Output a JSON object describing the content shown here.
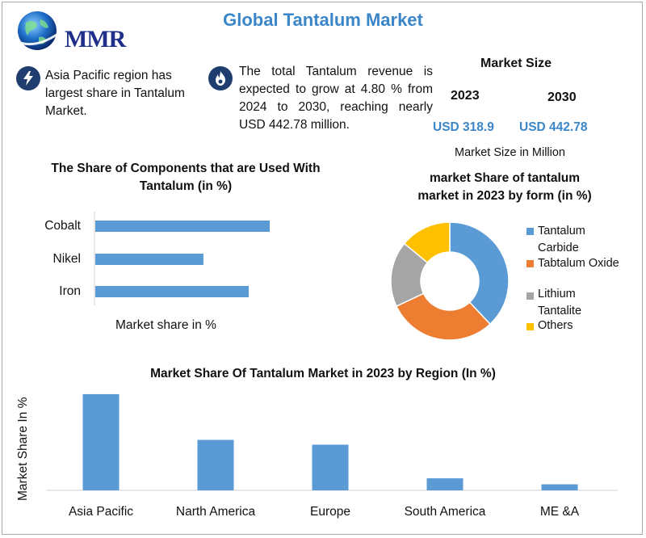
{
  "header": {
    "title": "Global Tantalum Market",
    "logo_text": "MMR"
  },
  "facts": [
    {
      "icon": "lightning-icon",
      "text": "Asia Pacific region has largest share in Tantalum Market."
    },
    {
      "icon": "flame-icon",
      "text": "The total Tantalum revenue is expected to grow at 4.80 % from 2024 to 2030, reaching nearly USD 442.78 million."
    }
  ],
  "market_size": {
    "title": "Market Size",
    "year_1": "2023",
    "year_2": "2030",
    "value_1": "USD 318.9",
    "value_2": "USD 442.78",
    "unit": "Market Size in Million"
  },
  "colors": {
    "accent_blue": "#3b86c8",
    "bar_blue": "#5b9bd5",
    "orange": "#ed7d31",
    "gray": "#a5a5a5",
    "yellow": "#ffc000",
    "logo_navy": "#1f2f8a"
  },
  "chart_data": [
    {
      "type": "bar",
      "orientation": "horizontal",
      "title": "The Share of Components that are Used With Tantalum (in %)",
      "categories": [
        "Cobalt",
        "Nikel",
        "Iron"
      ],
      "values": [
        50,
        31,
        44
      ],
      "xlabel": "Market share in %",
      "xlim": [
        0,
        100
      ],
      "grid": false
    },
    {
      "type": "pie",
      "donut": true,
      "title": "market Share of tantalum market in 2023 by form (in %)",
      "categories": [
        "Tantalum Carbide",
        "Tabtalum Oxide",
        "Lithium Tantalite",
        "Others"
      ],
      "values": [
        38,
        30,
        18,
        14
      ],
      "legend": "right"
    },
    {
      "type": "bar",
      "orientation": "vertical",
      "title": "Market Share Of Tantalum Market in 2023 by Region (In %)",
      "categories": [
        "Asia Pacific",
        "Narth America",
        "Europe",
        "South America",
        "ME &A"
      ],
      "values": [
        40,
        21,
        19,
        5,
        2.5
      ],
      "ylabel": "Market Share In %",
      "ylim": [
        0,
        42
      ],
      "grid": false
    }
  ]
}
